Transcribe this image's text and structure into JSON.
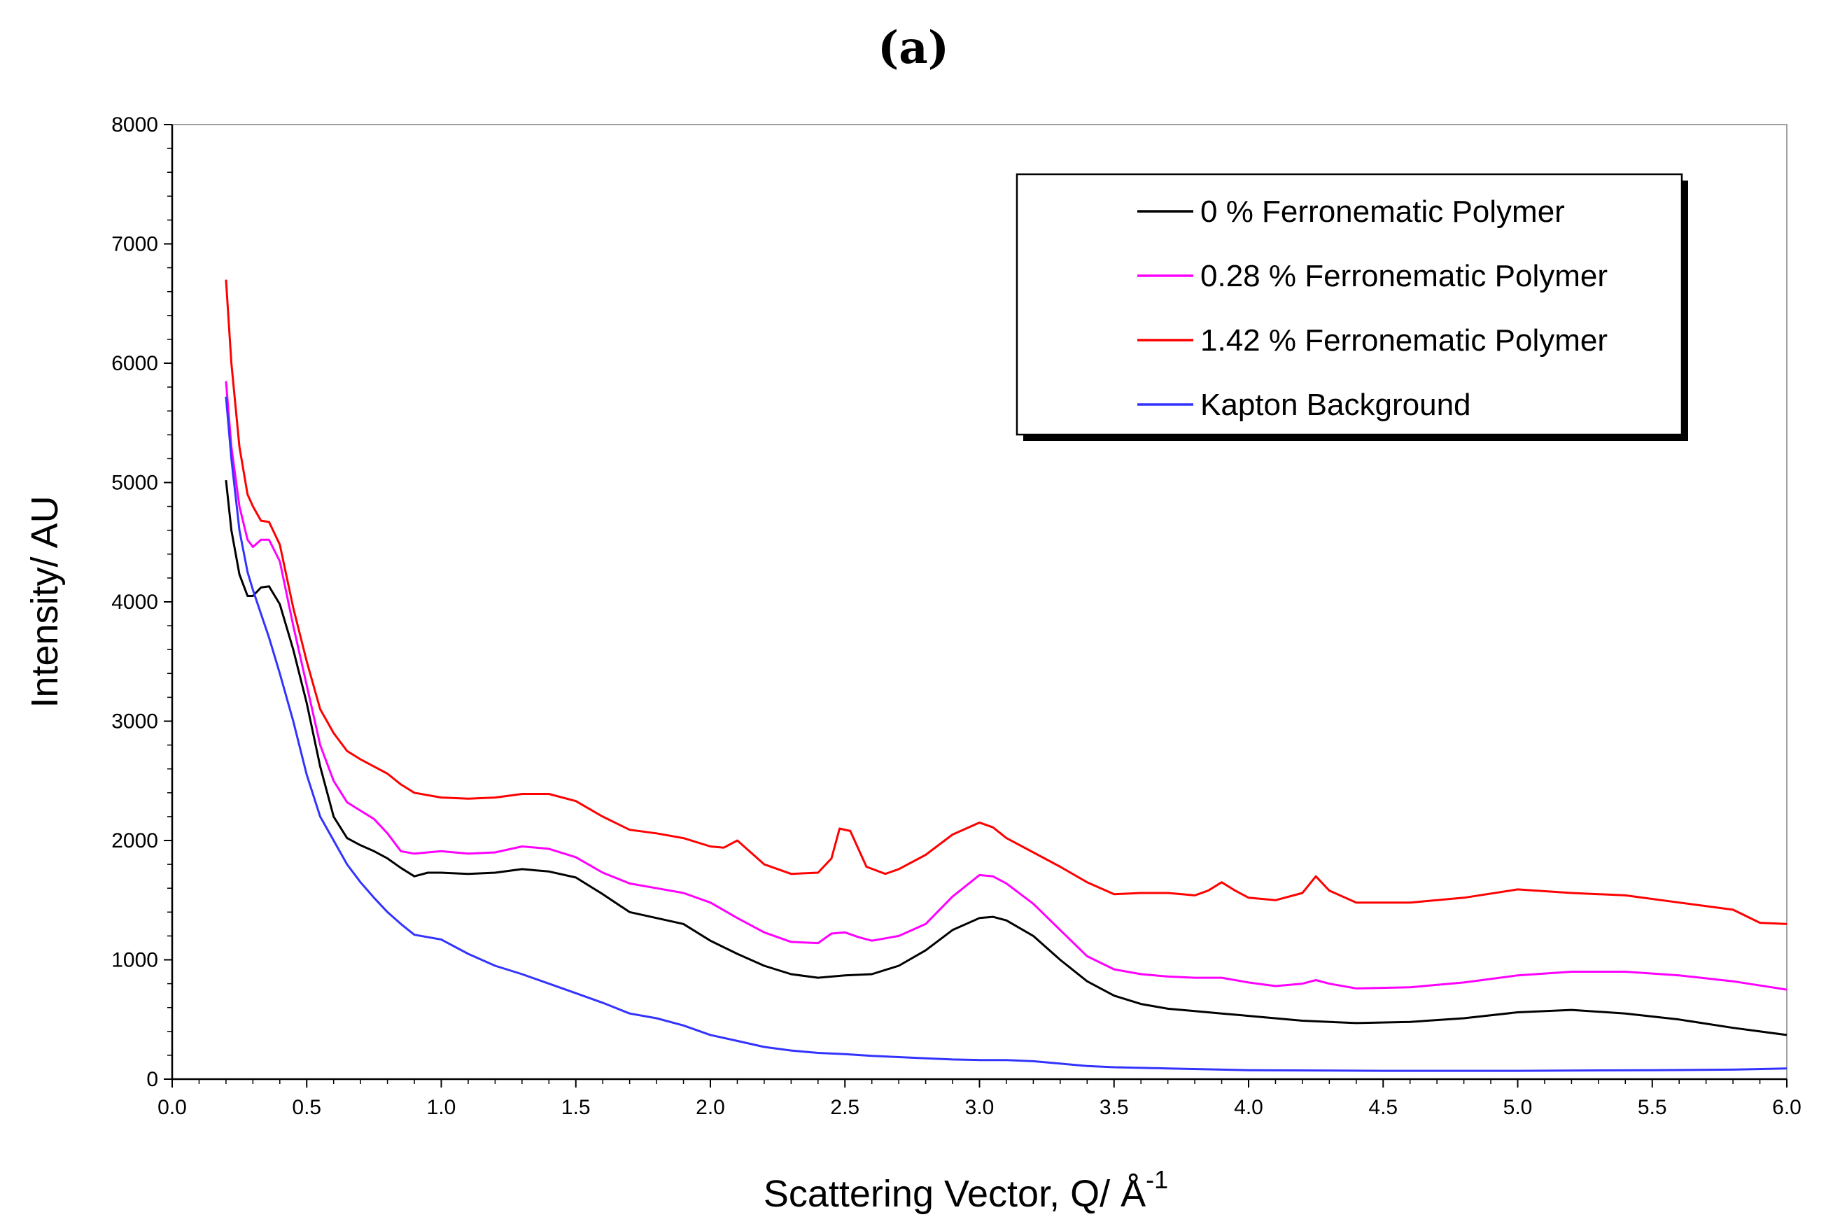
{
  "chart_data": {
    "type": "line",
    "panel_label": "(a)",
    "xlabel": "Scattering Vector, Q/ Å",
    "xlabel_superscript": "-1",
    "ylabel": "Intensity/ AU",
    "xlim": [
      0.0,
      6.0
    ],
    "ylim": [
      0,
      8000
    ],
    "xticks": [
      "0.0",
      "0.5",
      "1.0",
      "1.5",
      "2.0",
      "2.5",
      "3.0",
      "3.5",
      "4.0",
      "4.5",
      "5.0",
      "5.5",
      "6.0"
    ],
    "yticks": [
      "0",
      "1000",
      "2000",
      "3000",
      "4000",
      "5000",
      "6000",
      "7000",
      "8000"
    ],
    "legend_position": "top-right",
    "grid": false,
    "series": [
      {
        "name": "0 % Ferronematic Polymer",
        "color": "#000000",
        "points": [
          [
            0.2,
            5020
          ],
          [
            0.22,
            4600
          ],
          [
            0.25,
            4230
          ],
          [
            0.28,
            4050
          ],
          [
            0.3,
            4050
          ],
          [
            0.33,
            4120
          ],
          [
            0.36,
            4130
          ],
          [
            0.4,
            3980
          ],
          [
            0.45,
            3600
          ],
          [
            0.5,
            3150
          ],
          [
            0.55,
            2620
          ],
          [
            0.6,
            2200
          ],
          [
            0.65,
            2020
          ],
          [
            0.7,
            1960
          ],
          [
            0.75,
            1910
          ],
          [
            0.8,
            1850
          ],
          [
            0.85,
            1770
          ],
          [
            0.9,
            1700
          ],
          [
            0.95,
            1730
          ],
          [
            1.0,
            1730
          ],
          [
            1.1,
            1720
          ],
          [
            1.2,
            1730
          ],
          [
            1.3,
            1760
          ],
          [
            1.4,
            1740
          ],
          [
            1.5,
            1690
          ],
          [
            1.6,
            1550
          ],
          [
            1.7,
            1400
          ],
          [
            1.8,
            1350
          ],
          [
            1.9,
            1300
          ],
          [
            2.0,
            1160
          ],
          [
            2.1,
            1050
          ],
          [
            2.2,
            950
          ],
          [
            2.3,
            880
          ],
          [
            2.4,
            850
          ],
          [
            2.5,
            870
          ],
          [
            2.6,
            880
          ],
          [
            2.7,
            950
          ],
          [
            2.8,
            1080
          ],
          [
            2.9,
            1250
          ],
          [
            3.0,
            1350
          ],
          [
            3.05,
            1360
          ],
          [
            3.1,
            1330
          ],
          [
            3.2,
            1200
          ],
          [
            3.3,
            1000
          ],
          [
            3.4,
            820
          ],
          [
            3.5,
            700
          ],
          [
            3.6,
            630
          ],
          [
            3.7,
            590
          ],
          [
            3.8,
            570
          ],
          [
            3.9,
            550
          ],
          [
            4.0,
            530
          ],
          [
            4.2,
            490
          ],
          [
            4.4,
            470
          ],
          [
            4.6,
            480
          ],
          [
            4.8,
            510
          ],
          [
            5.0,
            560
          ],
          [
            5.2,
            580
          ],
          [
            5.4,
            550
          ],
          [
            5.6,
            500
          ],
          [
            5.8,
            430
          ],
          [
            6.0,
            370
          ]
        ]
      },
      {
        "name": "0.28 % Ferronematic Polymer",
        "color": "#ff00ff",
        "points": [
          [
            0.2,
            5850
          ],
          [
            0.22,
            5300
          ],
          [
            0.25,
            4800
          ],
          [
            0.28,
            4520
          ],
          [
            0.3,
            4460
          ],
          [
            0.33,
            4520
          ],
          [
            0.36,
            4520
          ],
          [
            0.4,
            4340
          ],
          [
            0.45,
            3800
          ],
          [
            0.5,
            3300
          ],
          [
            0.55,
            2800
          ],
          [
            0.6,
            2500
          ],
          [
            0.65,
            2320
          ],
          [
            0.7,
            2250
          ],
          [
            0.75,
            2180
          ],
          [
            0.8,
            2060
          ],
          [
            0.85,
            1910
          ],
          [
            0.9,
            1890
          ],
          [
            1.0,
            1910
          ],
          [
            1.1,
            1890
          ],
          [
            1.2,
            1900
          ],
          [
            1.3,
            1950
          ],
          [
            1.4,
            1930
          ],
          [
            1.5,
            1860
          ],
          [
            1.6,
            1730
          ],
          [
            1.7,
            1640
          ],
          [
            1.8,
            1600
          ],
          [
            1.9,
            1560
          ],
          [
            2.0,
            1480
          ],
          [
            2.1,
            1350
          ],
          [
            2.2,
            1230
          ],
          [
            2.3,
            1150
          ],
          [
            2.4,
            1140
          ],
          [
            2.45,
            1220
          ],
          [
            2.5,
            1230
          ],
          [
            2.55,
            1190
          ],
          [
            2.6,
            1160
          ],
          [
            2.7,
            1200
          ],
          [
            2.8,
            1300
          ],
          [
            2.9,
            1530
          ],
          [
            3.0,
            1710
          ],
          [
            3.05,
            1700
          ],
          [
            3.1,
            1640
          ],
          [
            3.2,
            1470
          ],
          [
            3.3,
            1250
          ],
          [
            3.4,
            1030
          ],
          [
            3.5,
            920
          ],
          [
            3.6,
            880
          ],
          [
            3.7,
            860
          ],
          [
            3.8,
            850
          ],
          [
            3.9,
            850
          ],
          [
            4.0,
            810
          ],
          [
            4.1,
            780
          ],
          [
            4.2,
            800
          ],
          [
            4.25,
            830
          ],
          [
            4.3,
            800
          ],
          [
            4.4,
            760
          ],
          [
            4.6,
            770
          ],
          [
            4.8,
            810
          ],
          [
            5.0,
            870
          ],
          [
            5.2,
            900
          ],
          [
            5.4,
            900
          ],
          [
            5.6,
            870
          ],
          [
            5.8,
            820
          ],
          [
            6.0,
            750
          ]
        ]
      },
      {
        "name": "1.42 % Ferronematic Polymer",
        "color": "#ff0000",
        "points": [
          [
            0.2,
            6700
          ],
          [
            0.22,
            6000
          ],
          [
            0.25,
            5300
          ],
          [
            0.28,
            4900
          ],
          [
            0.3,
            4800
          ],
          [
            0.33,
            4680
          ],
          [
            0.36,
            4670
          ],
          [
            0.4,
            4480
          ],
          [
            0.45,
            3950
          ],
          [
            0.5,
            3500
          ],
          [
            0.55,
            3100
          ],
          [
            0.6,
            2900
          ],
          [
            0.65,
            2750
          ],
          [
            0.7,
            2680
          ],
          [
            0.75,
            2620
          ],
          [
            0.8,
            2560
          ],
          [
            0.85,
            2470
          ],
          [
            0.9,
            2400
          ],
          [
            1.0,
            2360
          ],
          [
            1.1,
            2350
          ],
          [
            1.2,
            2360
          ],
          [
            1.3,
            2390
          ],
          [
            1.4,
            2390
          ],
          [
            1.5,
            2330
          ],
          [
            1.6,
            2200
          ],
          [
            1.7,
            2090
          ],
          [
            1.8,
            2060
          ],
          [
            1.9,
            2020
          ],
          [
            2.0,
            1950
          ],
          [
            2.05,
            1940
          ],
          [
            2.1,
            2000
          ],
          [
            2.15,
            1900
          ],
          [
            2.2,
            1800
          ],
          [
            2.3,
            1720
          ],
          [
            2.4,
            1730
          ],
          [
            2.45,
            1850
          ],
          [
            2.48,
            2100
          ],
          [
            2.52,
            2080
          ],
          [
            2.58,
            1780
          ],
          [
            2.65,
            1720
          ],
          [
            2.7,
            1760
          ],
          [
            2.8,
            1880
          ],
          [
            2.9,
            2050
          ],
          [
            3.0,
            2150
          ],
          [
            3.05,
            2110
          ],
          [
            3.1,
            2020
          ],
          [
            3.2,
            1900
          ],
          [
            3.3,
            1780
          ],
          [
            3.4,
            1650
          ],
          [
            3.5,
            1550
          ],
          [
            3.6,
            1560
          ],
          [
            3.7,
            1560
          ],
          [
            3.8,
            1540
          ],
          [
            3.85,
            1580
          ],
          [
            3.9,
            1650
          ],
          [
            3.95,
            1580
          ],
          [
            4.0,
            1520
          ],
          [
            4.1,
            1500
          ],
          [
            4.2,
            1560
          ],
          [
            4.25,
            1700
          ],
          [
            4.3,
            1580
          ],
          [
            4.4,
            1480
          ],
          [
            4.6,
            1480
          ],
          [
            4.8,
            1520
          ],
          [
            5.0,
            1590
          ],
          [
            5.2,
            1560
          ],
          [
            5.4,
            1540
          ],
          [
            5.6,
            1480
          ],
          [
            5.8,
            1420
          ],
          [
            5.9,
            1310
          ],
          [
            6.0,
            1300
          ]
        ]
      },
      {
        "name": "Kapton Background",
        "color": "#3333ff",
        "points": [
          [
            0.2,
            5720
          ],
          [
            0.22,
            5200
          ],
          [
            0.25,
            4600
          ],
          [
            0.28,
            4250
          ],
          [
            0.3,
            4100
          ],
          [
            0.33,
            3900
          ],
          [
            0.36,
            3700
          ],
          [
            0.4,
            3400
          ],
          [
            0.45,
            3000
          ],
          [
            0.5,
            2550
          ],
          [
            0.55,
            2200
          ],
          [
            0.6,
            2000
          ],
          [
            0.65,
            1800
          ],
          [
            0.7,
            1650
          ],
          [
            0.75,
            1520
          ],
          [
            0.8,
            1400
          ],
          [
            0.85,
            1300
          ],
          [
            0.9,
            1210
          ],
          [
            1.0,
            1170
          ],
          [
            1.1,
            1050
          ],
          [
            1.2,
            950
          ],
          [
            1.3,
            880
          ],
          [
            1.4,
            800
          ],
          [
            1.5,
            720
          ],
          [
            1.6,
            640
          ],
          [
            1.7,
            550
          ],
          [
            1.8,
            510
          ],
          [
            1.9,
            450
          ],
          [
            2.0,
            370
          ],
          [
            2.1,
            320
          ],
          [
            2.2,
            270
          ],
          [
            2.3,
            240
          ],
          [
            2.4,
            220
          ],
          [
            2.5,
            210
          ],
          [
            2.6,
            195
          ],
          [
            2.7,
            185
          ],
          [
            2.8,
            175
          ],
          [
            2.9,
            165
          ],
          [
            3.0,
            160
          ],
          [
            3.1,
            160
          ],
          [
            3.2,
            150
          ],
          [
            3.3,
            130
          ],
          [
            3.4,
            110
          ],
          [
            3.5,
            100
          ],
          [
            3.7,
            90
          ],
          [
            3.9,
            80
          ],
          [
            4.0,
            75
          ],
          [
            4.5,
            70
          ],
          [
            5.0,
            70
          ],
          [
            5.5,
            75
          ],
          [
            5.8,
            80
          ],
          [
            6.0,
            90
          ]
        ]
      }
    ]
  }
}
